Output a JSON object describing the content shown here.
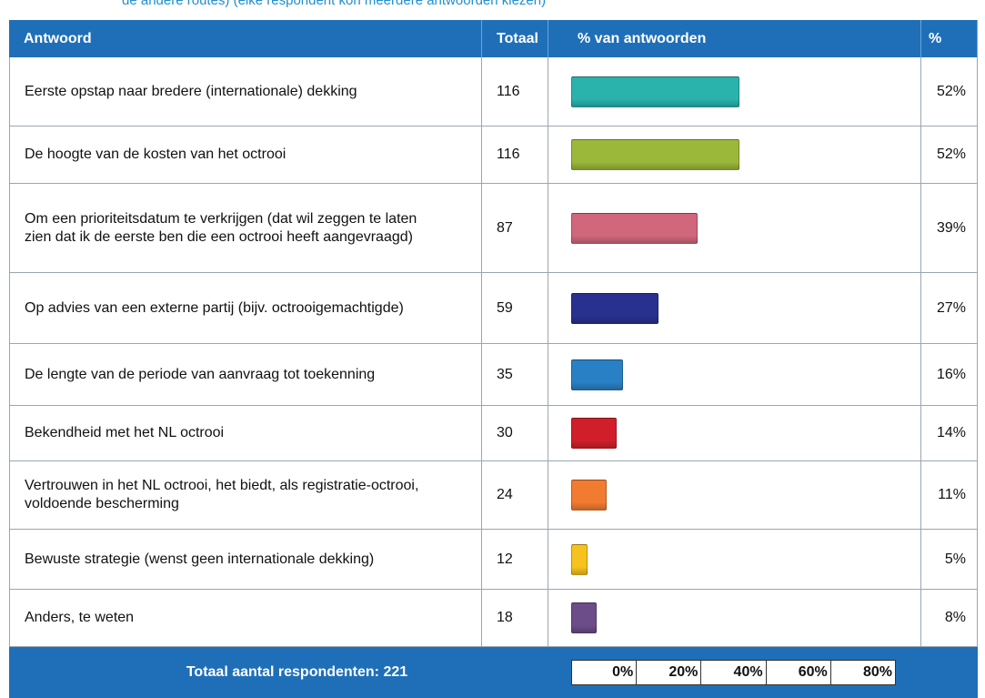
{
  "top_note": "de andere routes) (elke respondent kon meerdere antwoorden kiezen)",
  "chart_data": {
    "type": "table-bar",
    "columns": [
      "Antwoord",
      "Totaal",
      "% van antwoorden",
      "%"
    ],
    "categories": [
      "Eerste opstap naar bredere (internationale) dekking",
      "De hoogte van de kosten van het octrooi",
      "Om een prioriteitsdatum te verkrijgen (dat wil zeggen te laten zien dat ik de eerste ben die een octrooi heeft aangevraagd)",
      "Op advies van een externe partij (bijv. octrooigemachtigde)",
      "De lengte van de periode van aanvraag tot toekenning",
      "Bekendheid met het NL octrooi",
      "Vertrouwen in het NL octrooi, het biedt, als registratie-octrooi, voldoende bescherming",
      "Bewuste strategie (wenst geen internationale dekking)",
      "Anders, te weten"
    ],
    "totals": [
      116,
      116,
      87,
      59,
      35,
      30,
      24,
      12,
      18
    ],
    "values": [
      52,
      52,
      39,
      27,
      16,
      14,
      11,
      5,
      8
    ],
    "value_labels": [
      "52%",
      "52%",
      "39%",
      "27%",
      "16%",
      "14%",
      "11%",
      "5%",
      "8%"
    ],
    "colors": [
      "#2ab3ad",
      "#9cb83a",
      "#d0677b",
      "#28318f",
      "#2a80c5",
      "#d11f2a",
      "#f27b32",
      "#f6c21f",
      "#6c4d89"
    ],
    "xlim": [
      0,
      100
    ],
    "xticks": [
      {
        "value": 0,
        "label": "0%"
      },
      {
        "value": 20,
        "label": "20%"
      },
      {
        "value": 40,
        "label": "40%"
      },
      {
        "value": 60,
        "label": "60%"
      },
      {
        "value": 80,
        "label": "80%"
      }
    ],
    "footer": "Totaal aantal respondenten: 221"
  }
}
